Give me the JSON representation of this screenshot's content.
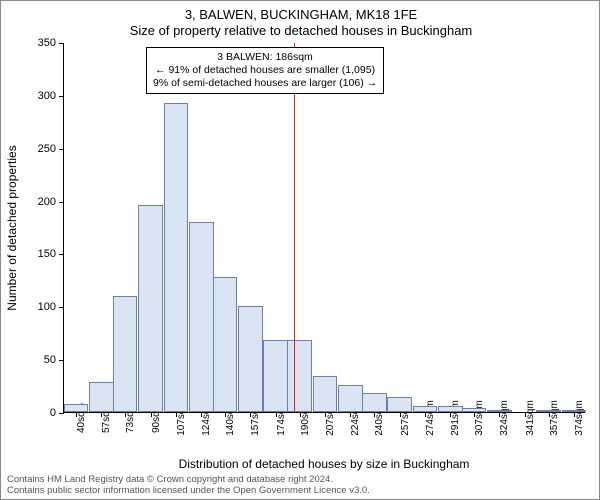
{
  "title_line1": "3, BALWEN, BUCKINGHAM, MK18 1FE",
  "title_line2": "Size of property relative to detached houses in Buckingham",
  "ylabel": "Number of detached properties",
  "xlabel": "Distribution of detached houses by size in Buckingham",
  "footer_line1": "Contains HM Land Registry data © Crown copyright and database right 2024.",
  "footer_line2": "Contains public sector information licensed under the Open Government Licence v3.0.",
  "chart": {
    "type": "histogram",
    "bar_fill": "#dae4f2",
    "bar_stroke": "#6b7fa8",
    "background": "#ffffff",
    "marker_color": "#d9261c",
    "marker_value_x": 186,
    "xlim": [
      32,
      382
    ],
    "ylim": [
      0,
      350
    ],
    "ytick_step": 50,
    "yticks": [
      0,
      50,
      100,
      150,
      200,
      250,
      300,
      350
    ],
    "xticks": [
      40,
      57,
      73,
      90,
      107,
      124,
      140,
      157,
      174,
      190,
      207,
      224,
      240,
      257,
      274,
      291,
      307,
      324,
      341,
      357,
      374
    ],
    "xtick_suffix": "sqm",
    "bar_width_units": 16.5,
    "bars": [
      {
        "x": 40,
        "y": 8
      },
      {
        "x": 57,
        "y": 28
      },
      {
        "x": 73,
        "y": 110
      },
      {
        "x": 90,
        "y": 196
      },
      {
        "x": 107,
        "y": 292
      },
      {
        "x": 124,
        "y": 180
      },
      {
        "x": 140,
        "y": 128
      },
      {
        "x": 157,
        "y": 100
      },
      {
        "x": 174,
        "y": 68
      },
      {
        "x": 190,
        "y": 68
      },
      {
        "x": 207,
        "y": 34
      },
      {
        "x": 224,
        "y": 26
      },
      {
        "x": 240,
        "y": 18
      },
      {
        "x": 257,
        "y": 14
      },
      {
        "x": 274,
        "y": 6
      },
      {
        "x": 291,
        "y": 6
      },
      {
        "x": 307,
        "y": 4
      },
      {
        "x": 324,
        "y": 2
      },
      {
        "x": 341,
        "y": 0
      },
      {
        "x": 357,
        "y": 2
      },
      {
        "x": 374,
        "y": 2
      }
    ]
  },
  "annotation": {
    "line1": "3 BALWEN: 186sqm",
    "line2": "← 91% of detached houses are smaller (1,095)",
    "line3": "9% of semi-detached houses are larger (106) →"
  }
}
